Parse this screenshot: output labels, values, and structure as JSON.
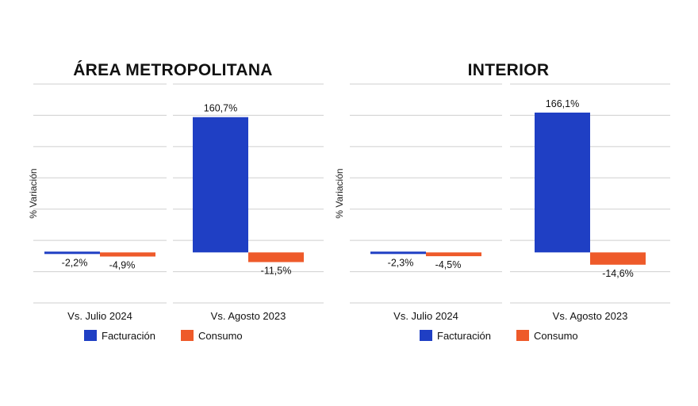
{
  "chart_data": [
    {
      "type": "bar",
      "title": "ÁREA METROPOLITANA",
      "ylabel": "% Variación",
      "xlabel": "",
      "categories": [
        "Vs. Julio 2024",
        "Vs. Agosto 2023"
      ],
      "series": [
        {
          "name": "Facturación",
          "color": "#1f3fc4",
          "values": [
            -2.2,
            160.7
          ],
          "labels": [
            "-2,2%",
            "160,7%"
          ]
        },
        {
          "name": "Consumo",
          "color": "#ee5a2a",
          "values": [
            -4.9,
            -11.5
          ],
          "labels": [
            "-4,9%",
            "-11,5%"
          ]
        }
      ],
      "ylim": [
        -60,
        200
      ],
      "grid": true,
      "legend": "bottom"
    },
    {
      "type": "bar",
      "title": "INTERIOR",
      "ylabel": "% Variación",
      "xlabel": "",
      "categories": [
        "Vs. Julio 2024",
        "Vs. Agosto 2023"
      ],
      "series": [
        {
          "name": "Facturación",
          "color": "#1f3fc4",
          "values": [
            -2.3,
            166.1
          ],
          "labels": [
            "-2,3%",
            "166,1%"
          ]
        },
        {
          "name": "Consumo",
          "color": "#ee5a2a",
          "values": [
            -4.5,
            -14.6
          ],
          "labels": [
            "-4,5%",
            "-14,6%"
          ]
        }
      ],
      "ylim": [
        -60,
        200
      ],
      "grid": true,
      "legend": "bottom"
    }
  ]
}
